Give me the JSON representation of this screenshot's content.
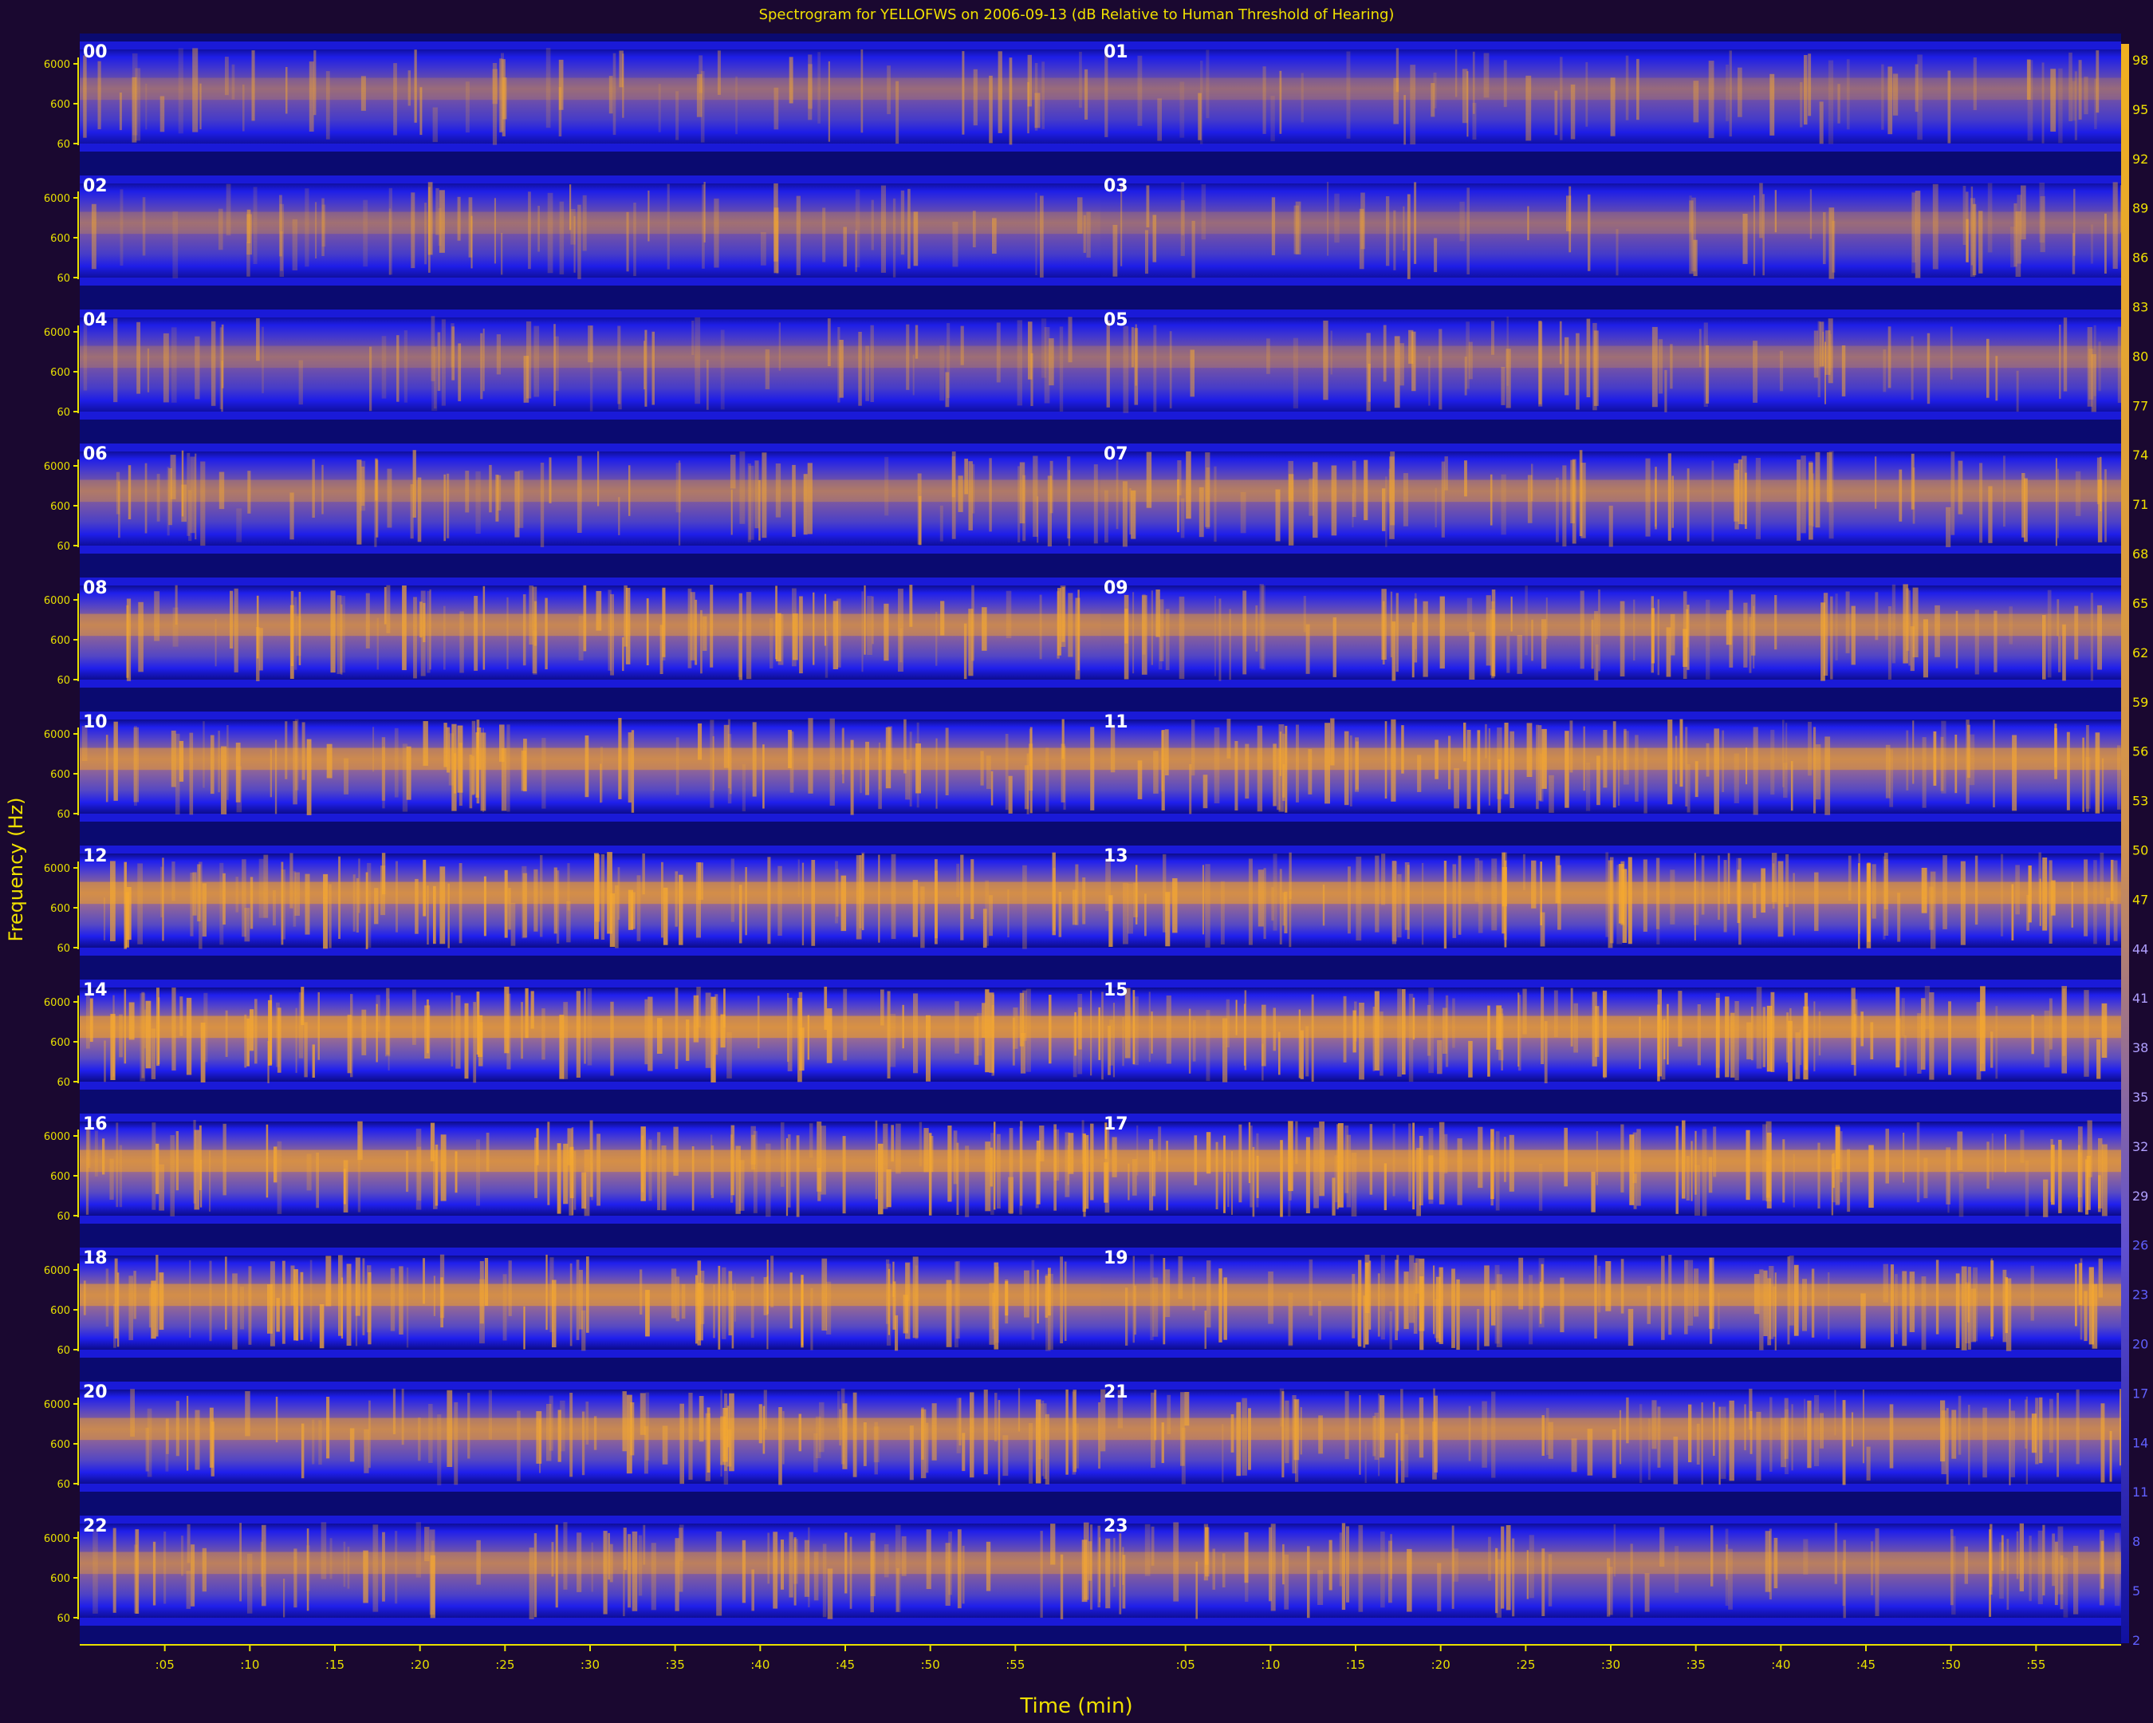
{
  "chart_data": {
    "type": "heatmap",
    "title": "Spectrogram for YELLOFWS on 2006-09-13 (dB Relative to Human Threshold of Hearing)",
    "xlabel": "Time (min)",
    "ylabel": "Frequency (Hz)",
    "y_tick_labels": [
      "6000",
      "600",
      "60"
    ],
    "x_tick_labels": [
      ":05",
      ":10",
      ":15",
      ":20",
      ":25",
      ":30",
      ":35",
      ":40",
      ":45",
      ":50",
      ":55"
    ],
    "x_tick_minutes": [
      5,
      10,
      15,
      20,
      25,
      30,
      35,
      40,
      45,
      50,
      55
    ],
    "colorbar_labels": [
      "98",
      "95",
      "92",
      "89",
      "86",
      "83",
      "80",
      "77",
      "74",
      "71",
      "68",
      "65",
      "62",
      "59",
      "56",
      "53",
      "50",
      "47",
      "44",
      "41",
      "38",
      "35",
      "32",
      "29",
      "26",
      "23",
      "20",
      "17",
      "14",
      "11",
      "8",
      "5",
      "2"
    ],
    "hour_labels": [
      "00",
      "01",
      "02",
      "03",
      "04",
      "05",
      "06",
      "07",
      "08",
      "09",
      "10",
      "11",
      "12",
      "13",
      "14",
      "15",
      "16",
      "17",
      "18",
      "19",
      "20",
      "21",
      "22",
      "23"
    ],
    "hourly_intensity": [
      0.3,
      0.28,
      0.35,
      0.3,
      0.32,
      0.33,
      0.45,
      0.5,
      0.65,
      0.62,
      0.72,
      0.74,
      0.8,
      0.8,
      0.86,
      0.84,
      0.82,
      0.85,
      0.8,
      0.76,
      0.68,
      0.66,
      0.55,
      0.52
    ]
  },
  "colors": {
    "background": "#1a0830",
    "low": "#0a0a80",
    "mid": "#2020f0",
    "high": "#f0a020",
    "text": "#f0e000"
  }
}
